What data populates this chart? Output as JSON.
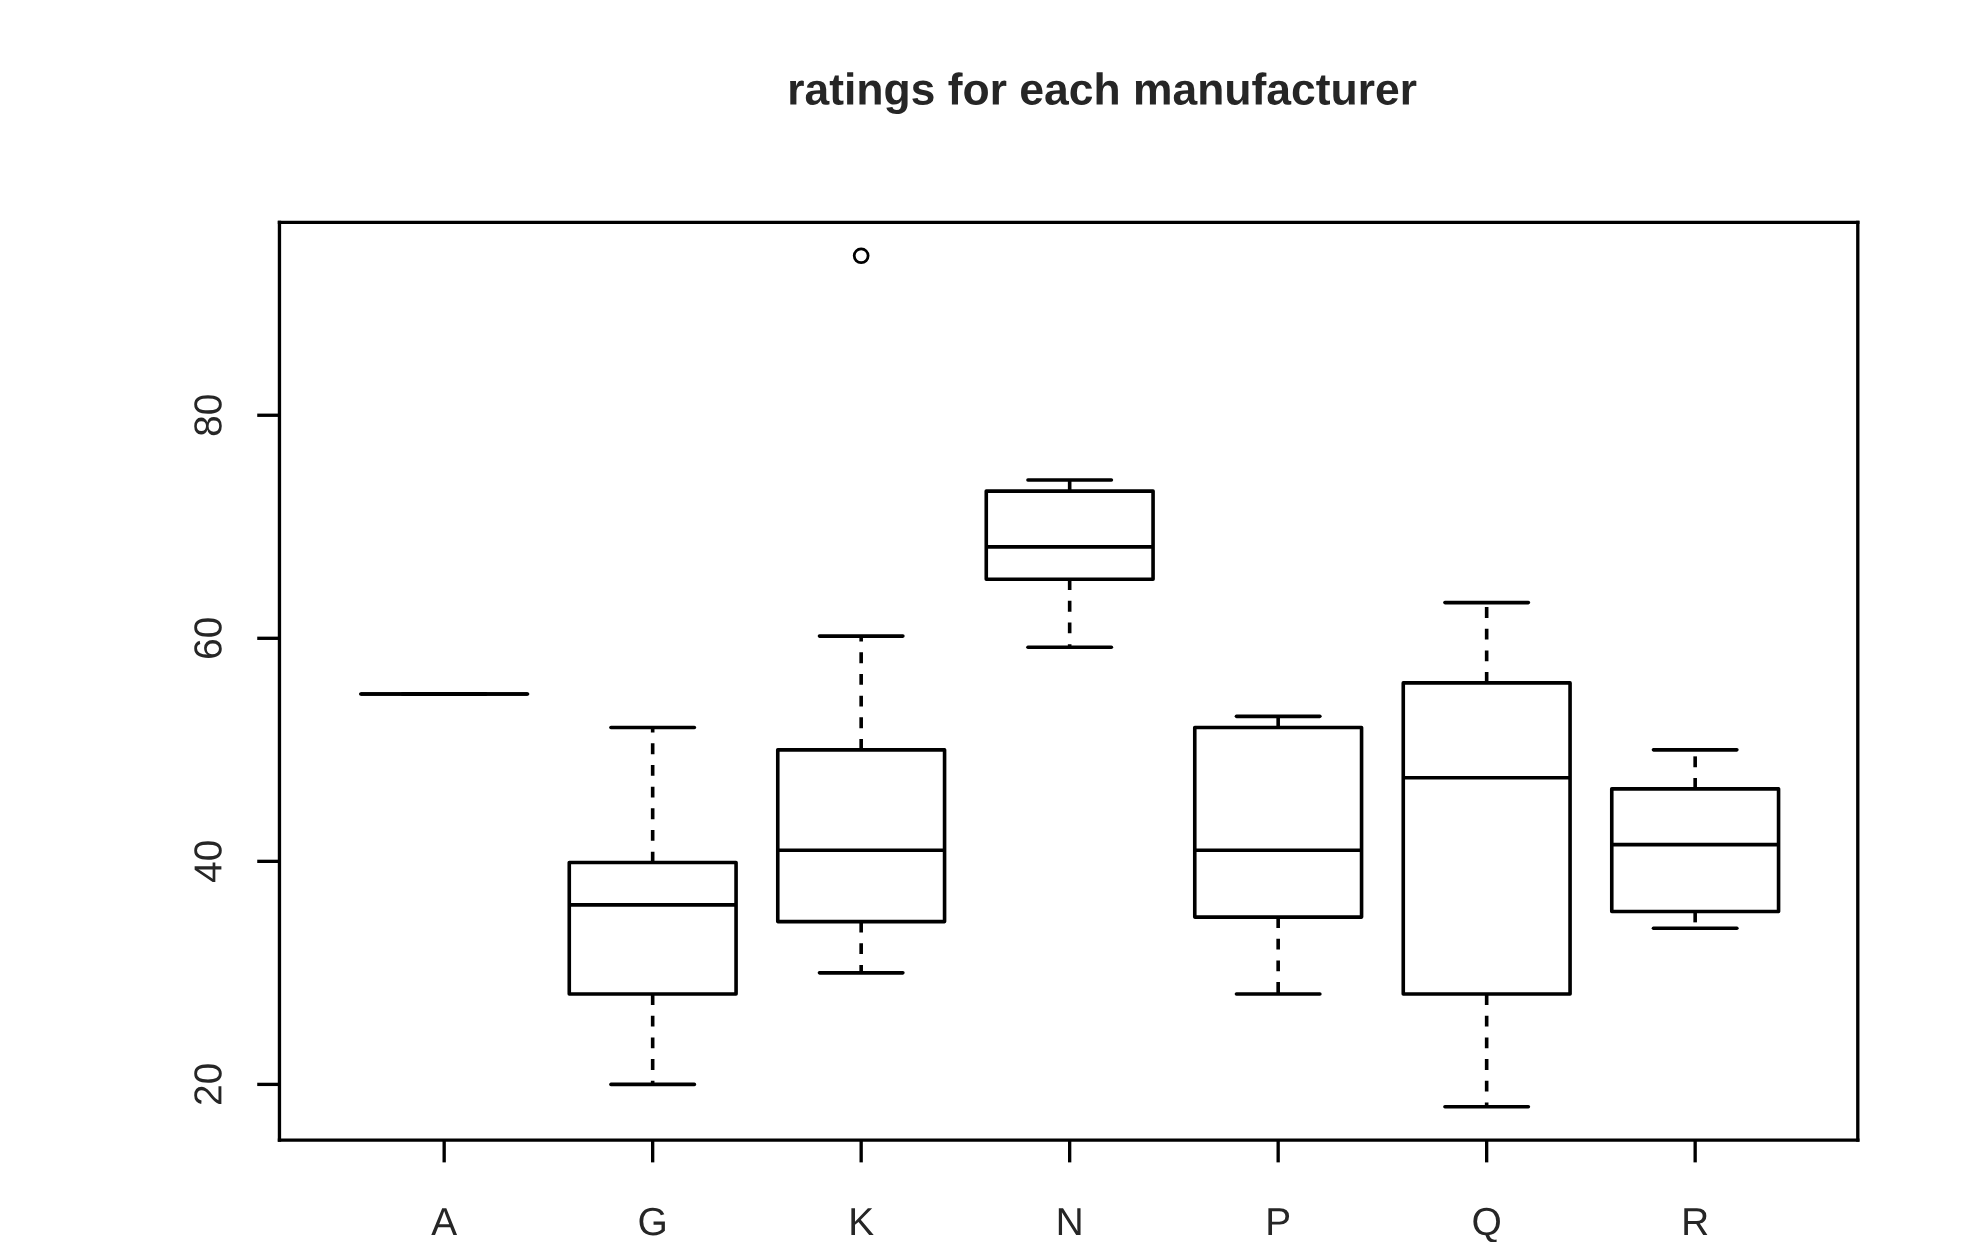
{
  "chart_data": {
    "type": "box",
    "title": "ratings for each manufacturer",
    "categories": [
      "A",
      "G",
      "K",
      "N",
      "P",
      "Q",
      "R"
    ],
    "boxes": [
      {
        "low": 55.0,
        "q1": 55.0,
        "median": 55.0,
        "q3": 55.0,
        "high": 55.0
      },
      {
        "low": 20.0,
        "q1": 28.1,
        "median": 36.1,
        "q3": 39.9,
        "high": 52.0
      },
      {
        "low": 30.0,
        "q1": 34.6,
        "median": 41.0,
        "q3": 50.0,
        "high": 60.2,
        "outliers": [
          94.3
        ]
      },
      {
        "low": 59.2,
        "q1": 65.3,
        "median": 68.2,
        "q3": 73.2,
        "high": 74.2
      },
      {
        "low": 28.1,
        "q1": 35.0,
        "median": 41.0,
        "q3": 52.0,
        "high": 53.0
      },
      {
        "low": 18.0,
        "q1": 28.1,
        "median": 47.5,
        "q3": 56.0,
        "high": 63.2
      },
      {
        "low": 34.0,
        "q1": 35.5,
        "median": 41.5,
        "q3": 46.5,
        "high": 50.0
      }
    ],
    "ylim": [
      15.0,
      97.3
    ],
    "yticks": [
      20,
      40,
      60,
      80
    ],
    "grid": false,
    "legend": false
  }
}
